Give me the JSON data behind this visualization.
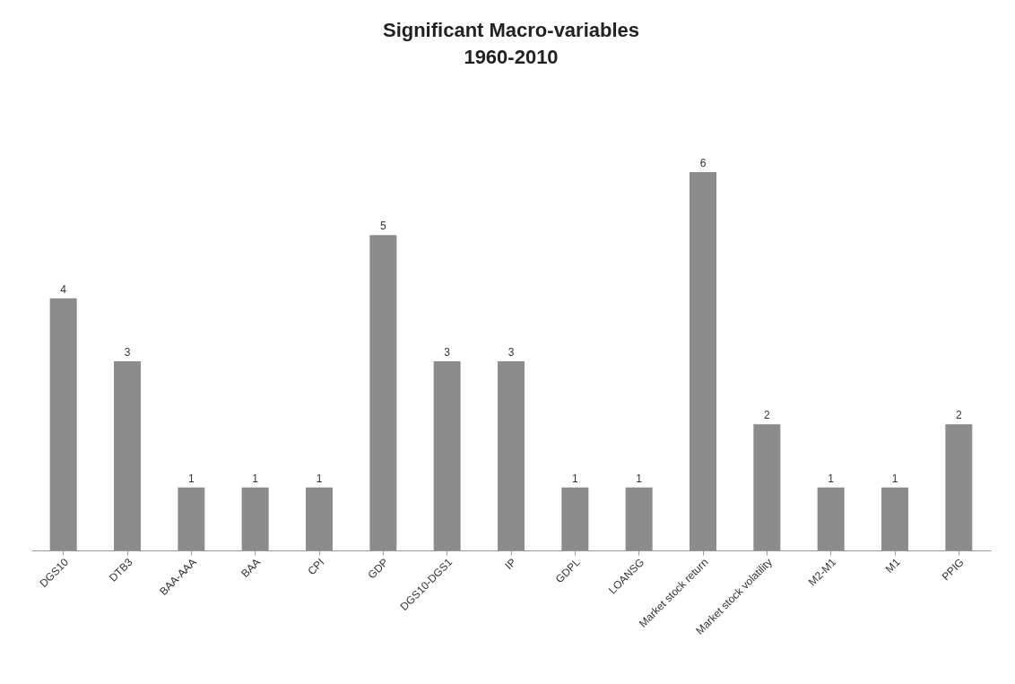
{
  "chart_data": {
    "type": "bar",
    "title": "Significant Macro-variables\n1960-2010",
    "categories": [
      "DGS10",
      "DTB3",
      "BAA-AAA",
      "BAA",
      "CPI",
      "GDP",
      "DGS10-DGS1",
      "IP",
      "GDPL",
      "LOANSG",
      "Market stock return",
      "Market stock volatility",
      "M2-M1",
      "M1",
      "PPIG"
    ],
    "values": [
      4,
      3,
      1,
      1,
      1,
      5,
      3,
      3,
      1,
      1,
      6,
      2,
      1,
      1,
      2
    ],
    "color": "#8c8c8c",
    "data_labels": true
  }
}
